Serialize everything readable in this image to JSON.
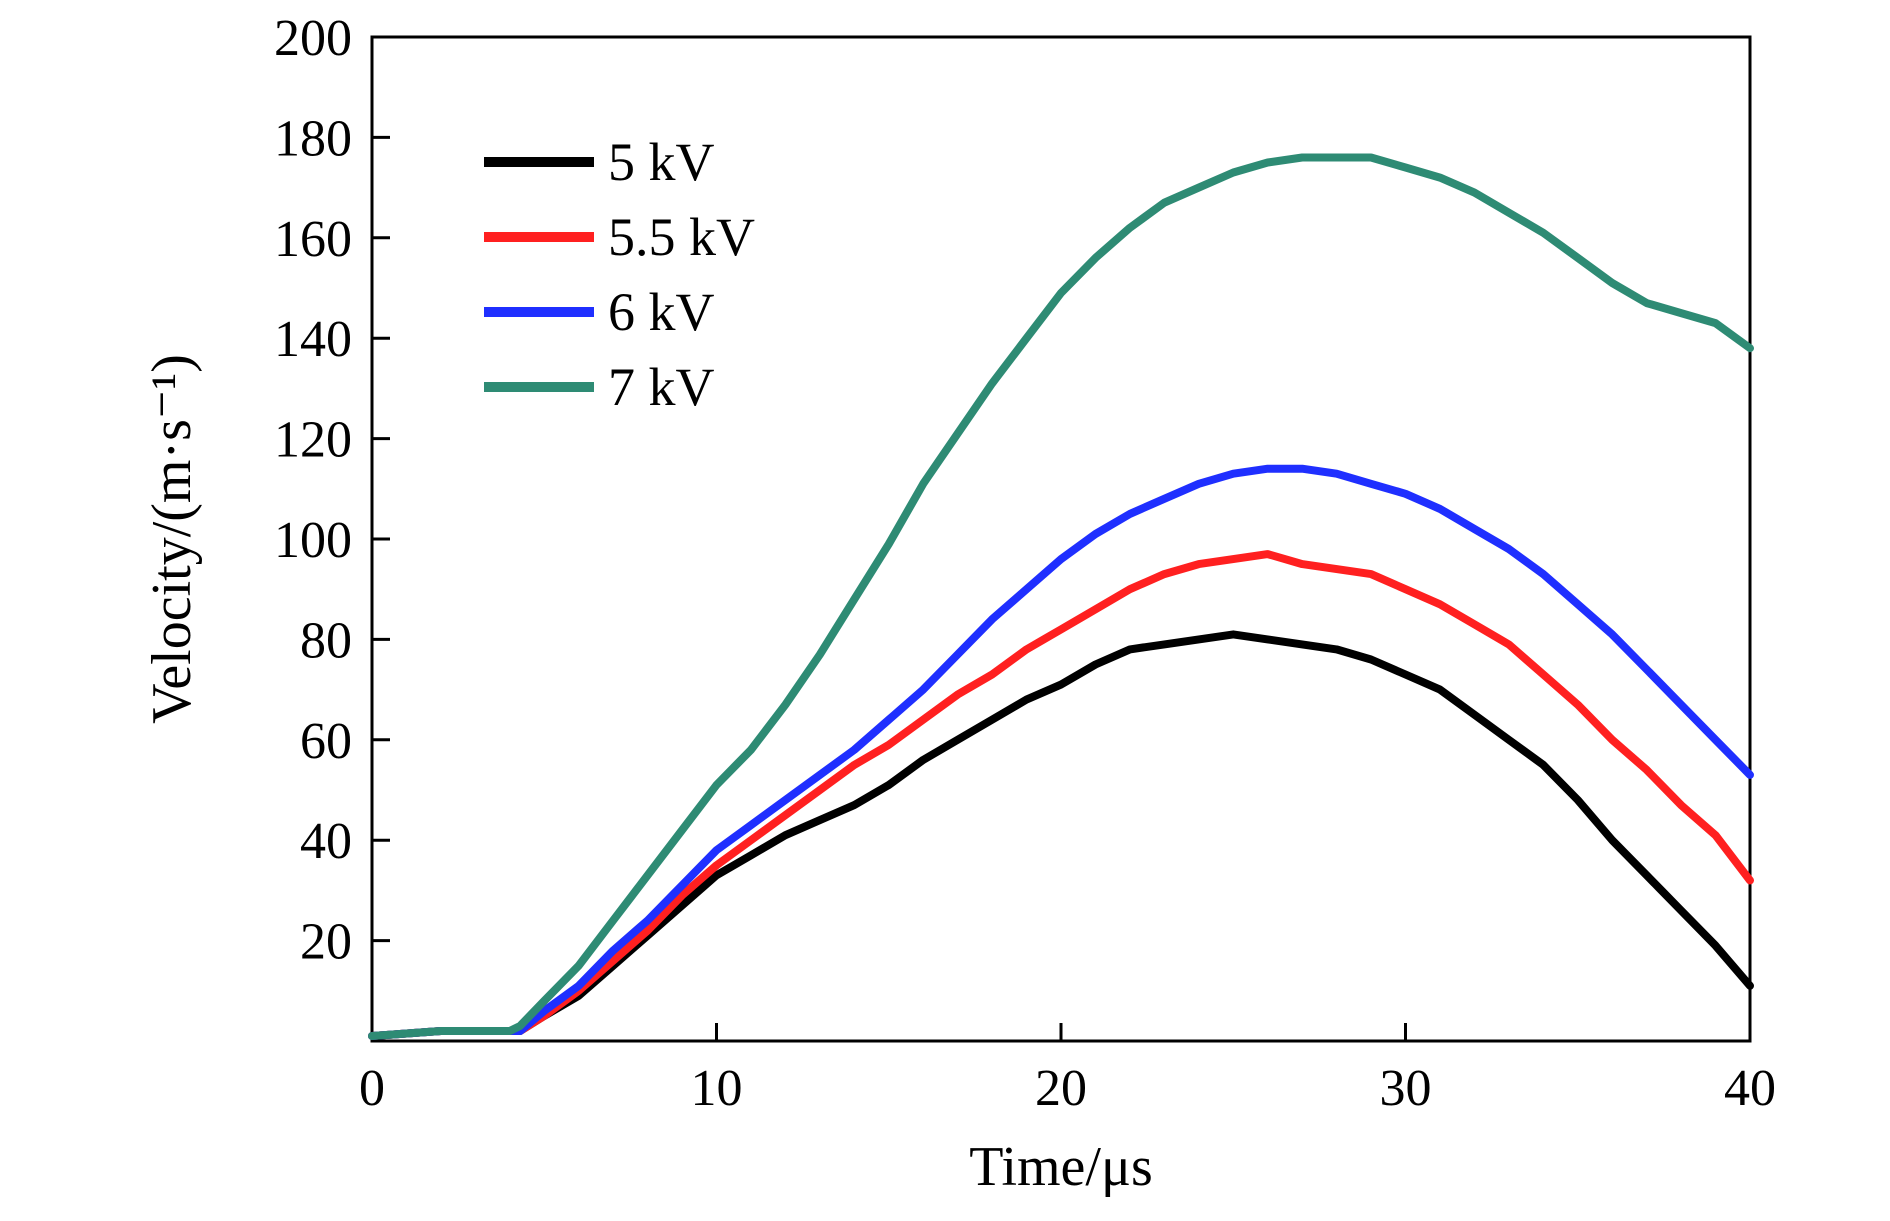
{
  "chart_data": {
    "type": "line",
    "xlabel": "Time/μs",
    "ylabel": "Velocity/(m·s⁻¹)",
    "xlim": [
      0,
      40
    ],
    "ylim": [
      0,
      200
    ],
    "x_ticks": [
      0,
      10,
      20,
      30,
      40
    ],
    "y_ticks": [
      20,
      40,
      60,
      80,
      100,
      120,
      140,
      160,
      180,
      200
    ],
    "grid": false,
    "legend_position": "top-left",
    "series": [
      {
        "name": "5 kV",
        "color": "#000000",
        "x": [
          0,
          2,
          4,
          4.3,
          5,
          6,
          7,
          8,
          9,
          10,
          11,
          12,
          13,
          14,
          15,
          16,
          17,
          18,
          19,
          20,
          21,
          22,
          23,
          24,
          25,
          26,
          27,
          28,
          29,
          30,
          31,
          32,
          33,
          34,
          35,
          36,
          37,
          38,
          39,
          40
        ],
        "values": [
          1,
          2,
          2,
          2,
          5,
          9,
          15,
          21,
          27,
          33,
          37,
          41,
          44,
          47,
          51,
          56,
          60,
          64,
          68,
          71,
          75,
          78,
          79,
          80,
          81,
          80,
          79,
          78,
          76,
          73,
          70,
          65,
          60,
          55,
          48,
          40,
          33,
          26,
          19,
          11
        ]
      },
      {
        "name": "5.5 kV",
        "color": "#ff2020",
        "x": [
          0,
          2,
          4,
          4.3,
          5,
          6,
          7,
          8,
          9,
          10,
          11,
          12,
          13,
          14,
          15,
          16,
          17,
          18,
          19,
          20,
          21,
          22,
          23,
          24,
          25,
          26,
          27,
          28,
          29,
          30,
          31,
          32,
          33,
          34,
          35,
          36,
          37,
          38,
          39,
          40
        ],
        "values": [
          1,
          2,
          2,
          2,
          5,
          10,
          16,
          22,
          29,
          35,
          40,
          45,
          50,
          55,
          59,
          64,
          69,
          73,
          78,
          82,
          86,
          90,
          93,
          95,
          96,
          97,
          95,
          94,
          93,
          90,
          87,
          83,
          79,
          73,
          67,
          60,
          54,
          47,
          41,
          32
        ]
      },
      {
        "name": "6 kV",
        "color": "#1f2fff",
        "x": [
          0,
          2,
          4,
          4.3,
          5,
          6,
          7,
          8,
          9,
          10,
          11,
          12,
          13,
          14,
          15,
          16,
          17,
          18,
          19,
          20,
          21,
          22,
          23,
          24,
          25,
          26,
          27,
          28,
          29,
          30,
          31,
          32,
          33,
          34,
          35,
          36,
          37,
          38,
          39,
          40
        ],
        "values": [
          1,
          2,
          2,
          2,
          6,
          11,
          18,
          24,
          31,
          38,
          43,
          48,
          53,
          58,
          64,
          70,
          77,
          84,
          90,
          96,
          101,
          105,
          108,
          111,
          113,
          114,
          114,
          113,
          111,
          109,
          106,
          102,
          98,
          93,
          87,
          81,
          74,
          67,
          60,
          53
        ]
      },
      {
        "name": "7 kV",
        "color": "#2e8b74",
        "x": [
          0,
          2,
          4,
          4.3,
          5,
          6,
          7,
          8,
          9,
          10,
          11,
          12,
          13,
          14,
          15,
          16,
          17,
          18,
          19,
          20,
          21,
          22,
          23,
          24,
          25,
          26,
          27,
          28,
          29,
          30,
          31,
          32,
          33,
          34,
          35,
          36,
          37,
          38,
          39,
          40
        ],
        "values": [
          1,
          2,
          2,
          3,
          8,
          15,
          24,
          33,
          42,
          51,
          58,
          67,
          77,
          88,
          99,
          111,
          121,
          131,
          140,
          149,
          156,
          162,
          167,
          170,
          173,
          175,
          176,
          176,
          176,
          174,
          172,
          169,
          165,
          161,
          156,
          151,
          147,
          145,
          143,
          138
        ]
      }
    ]
  }
}
